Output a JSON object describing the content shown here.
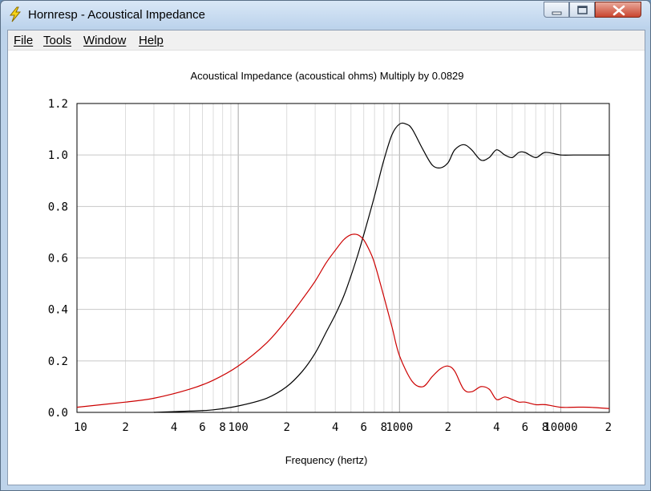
{
  "window": {
    "title": "Hornresp - Acoustical Impedance"
  },
  "menu": {
    "file": "File",
    "tools": "Tools",
    "window": "Window",
    "help": "Help"
  },
  "chart_data": {
    "type": "line",
    "title": "Acoustical Impedance (acoustical ohms)   Multiply by 0.0829",
    "xlabel": "Frequency (hertz)",
    "ylabel": "",
    "xscale": "log",
    "xlim": [
      10,
      20000
    ],
    "ylim": [
      0,
      1.2
    ],
    "grid": true,
    "x_tick_labels": [
      "10",
      "2",
      "4",
      "6",
      "8",
      "100",
      "2",
      "4",
      "6",
      "8",
      "1000",
      "2",
      "4",
      "6",
      "8",
      "10000",
      "2"
    ],
    "y_tick_labels": [
      "0.0",
      "0.2",
      "0.4",
      "0.6",
      "0.8",
      "1.0",
      "1.2"
    ],
    "series": [
      {
        "color": "#000000",
        "x": [
          30,
          50,
          70,
          100,
          150,
          200,
          250,
          300,
          350,
          400,
          450,
          500,
          550,
          600,
          700,
          800,
          900,
          1000,
          1100,
          1200,
          1400,
          1600,
          1800,
          2000,
          2200,
          2500,
          2800,
          3200,
          3600,
          4000,
          4500,
          5000,
          5500,
          6000,
          7000,
          8000,
          10000,
          12000,
          15000,
          20000
        ],
        "y": [
          0.0,
          0.005,
          0.01,
          0.025,
          0.055,
          0.1,
          0.16,
          0.23,
          0.31,
          0.38,
          0.45,
          0.53,
          0.61,
          0.69,
          0.84,
          0.98,
          1.08,
          1.12,
          1.12,
          1.1,
          1.02,
          0.96,
          0.95,
          0.97,
          1.02,
          1.04,
          1.02,
          0.98,
          0.99,
          1.02,
          1.0,
          0.99,
          1.01,
          1.01,
          0.99,
          1.01,
          1.0,
          1.0,
          1.0,
          1.0
        ]
      },
      {
        "color": "#cc0000",
        "x": [
          10,
          20,
          30,
          50,
          70,
          100,
          150,
          200,
          250,
          300,
          350,
          400,
          450,
          500,
          550,
          600,
          650,
          700,
          800,
          900,
          1000,
          1200,
          1400,
          1600,
          1800,
          2000,
          2200,
          2500,
          2800,
          3200,
          3600,
          4000,
          4500,
          5000,
          5500,
          6000,
          7000,
          8000,
          10000,
          12000,
          15000,
          20000
        ],
        "y": [
          0.02,
          0.04,
          0.055,
          0.09,
          0.125,
          0.18,
          0.27,
          0.36,
          0.44,
          0.51,
          0.58,
          0.63,
          0.67,
          0.69,
          0.69,
          0.67,
          0.63,
          0.58,
          0.45,
          0.33,
          0.22,
          0.12,
          0.1,
          0.14,
          0.17,
          0.18,
          0.16,
          0.09,
          0.08,
          0.1,
          0.09,
          0.05,
          0.06,
          0.05,
          0.04,
          0.04,
          0.03,
          0.03,
          0.02,
          0.02,
          0.02,
          0.015
        ]
      }
    ]
  }
}
